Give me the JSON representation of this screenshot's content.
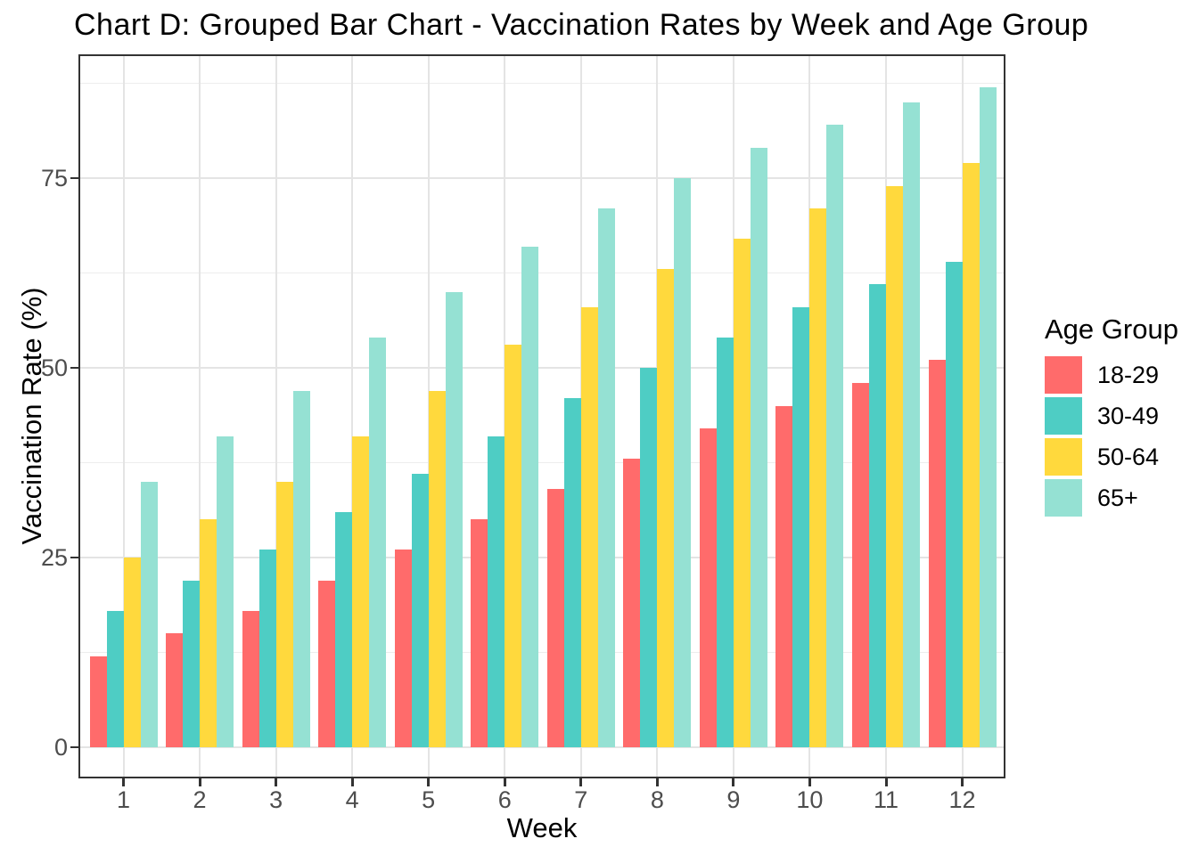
{
  "title": "Chart D: Grouped Bar Chart - Vaccination Rates by Week and Age Group",
  "chart_data": {
    "type": "bar",
    "grouped": true,
    "title": "Chart D: Grouped Bar Chart - Vaccination Rates by Week and Age Group",
    "xlabel": "Week",
    "ylabel": "Vaccination Rate (%)",
    "categories": [
      "1",
      "2",
      "3",
      "4",
      "5",
      "6",
      "7",
      "8",
      "9",
      "10",
      "11",
      "12"
    ],
    "series": [
      {
        "name": "18-29",
        "color": "#FF6B6B",
        "values": [
          12,
          15,
          18,
          22,
          26,
          30,
          34,
          38,
          42,
          45,
          48,
          51
        ]
      },
      {
        "name": "30-49",
        "color": "#4ECDC4",
        "values": [
          18,
          22,
          26,
          31,
          36,
          41,
          46,
          50,
          54,
          58,
          61,
          64
        ]
      },
      {
        "name": "50-64",
        "color": "#FFD93D",
        "values": [
          25,
          30,
          35,
          41,
          47,
          53,
          58,
          63,
          67,
          71,
          74,
          77
        ]
      },
      {
        "name": "65+",
        "color": "#95E1D3",
        "values": [
          35,
          41,
          47,
          54,
          60,
          66,
          71,
          75,
          79,
          82,
          85,
          87
        ]
      }
    ],
    "y_ticks": [
      0,
      25,
      50,
      75
    ],
    "y_minor_ticks": [
      12.5,
      37.5,
      62.5,
      87.5
    ],
    "ylim": [
      -4.35,
      91.35
    ],
    "grid": true,
    "legend": {
      "title": "Age Group",
      "position": "right"
    }
  }
}
